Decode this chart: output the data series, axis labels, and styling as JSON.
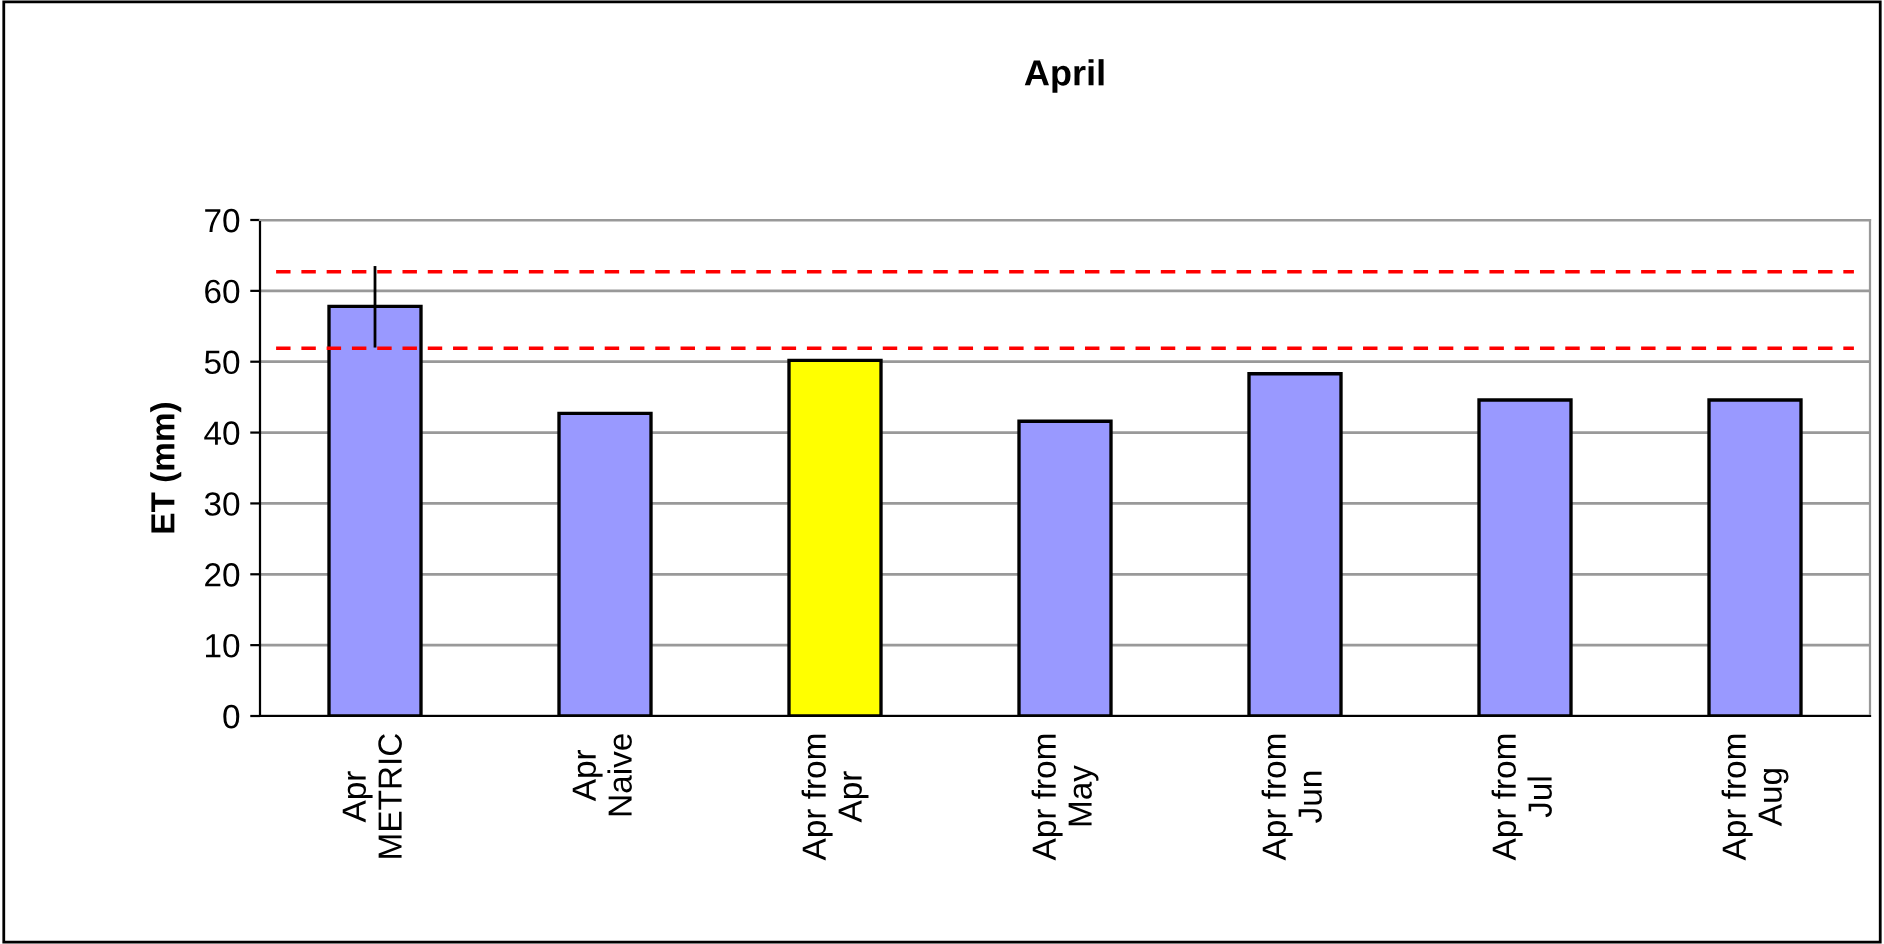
{
  "chart_data": {
    "type": "bar",
    "title": "April",
    "ylabel": "ET (mm)",
    "categories": [
      "Apr\nMETRIC",
      "Apr\nNaive",
      "Apr from\nApr",
      "Apr from\nMay",
      "Apr from\nJun",
      "Apr from\nJul",
      "Apr from\nAug"
    ],
    "values": [
      57.8,
      42.7,
      50.2,
      41.6,
      48.3,
      44.6,
      44.6
    ],
    "colors": [
      "#9999ff",
      "#9999ff",
      "#ffff00",
      "#9999ff",
      "#9999ff",
      "#9999ff",
      "#9999ff"
    ],
    "errors": [
      [
        52,
        63.5
      ],
      null,
      null,
      null,
      null,
      null,
      null
    ],
    "ylim": [
      0,
      70
    ],
    "yticks": [
      0,
      10,
      20,
      30,
      40,
      50,
      60,
      70
    ],
    "grid": "y",
    "ref_lines": [
      {
        "axis": "y",
        "value": 62.7,
        "color": "#ff0000",
        "line_style": "dashed"
      },
      {
        "axis": "y",
        "value": 51.9,
        "color": "#ff0000",
        "line_style": "dashed"
      }
    ]
  }
}
